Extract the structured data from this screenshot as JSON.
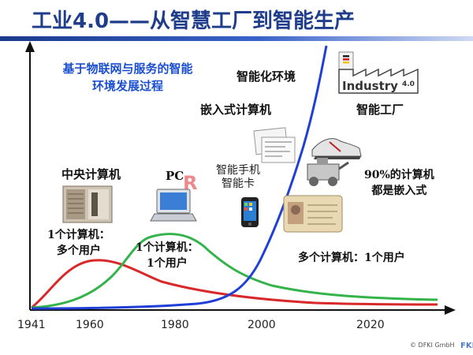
{
  "title": "工业4.0——从智慧工厂到智能生产",
  "subtitle_lines": [
    "基于物联网与服务的智能",
    "环境发展过程"
  ],
  "x_axis": {
    "ticks": [
      "1941",
      "1960",
      "1980",
      "2000",
      "2020"
    ]
  },
  "phases": {
    "mainframe": {
      "label": "中央计算机",
      "ratio_lines": [
        "1个计算机：",
        "多个用户"
      ]
    },
    "pc": {
      "label": "PC",
      "ratio_lines": [
        "1个计算机：",
        "1个用户"
      ]
    },
    "smart": {
      "label_lines": [
        "智能手机",
        "智能卡"
      ]
    },
    "embedded": {
      "label": "嵌入式计算机"
    },
    "env": {
      "label": "智能化环境"
    },
    "factory": {
      "label": "智能工厂",
      "logo_text": "Industry",
      "logo_version": "4.0"
    },
    "ubiquitous_ratio": "多个计算机：1个用户",
    "embedded_share_lines": [
      "90%的计算机",
      "都是嵌入式"
    ]
  },
  "watermark": "© DFKI GmbH",
  "colors": {
    "mainframe": "#d8282a",
    "pc": "#33b34a",
    "embedded": "#1f3fd6",
    "title": "#1f3d8a"
  }
}
